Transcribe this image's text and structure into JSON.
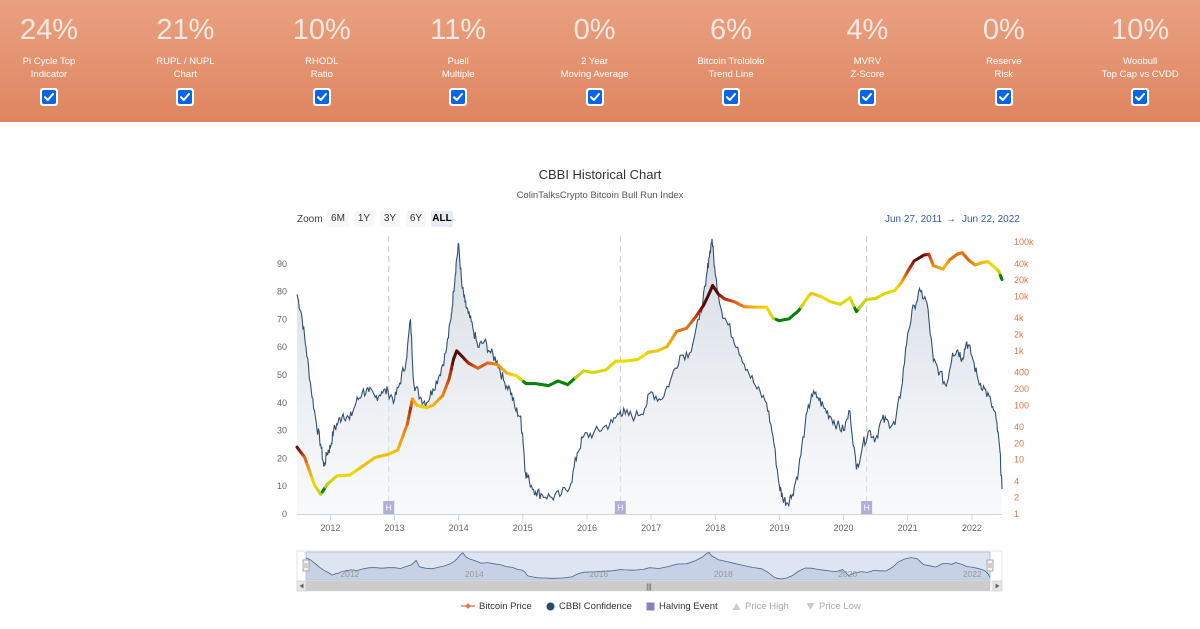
{
  "indicators": [
    {
      "value": "24%",
      "label1": "Pi Cycle Top",
      "label2": "Indicator",
      "checked": true
    },
    {
      "value": "21%",
      "label1": "RUPL / NUPL",
      "label2": "Chart",
      "checked": true
    },
    {
      "value": "10%",
      "label1": "RHODL",
      "label2": "Ratio",
      "checked": true
    },
    {
      "value": "11%",
      "label1": "Puell",
      "label2": "Multiple",
      "checked": true
    },
    {
      "value": "0%",
      "label1": "2 Year",
      "label2": "Moving Average",
      "checked": true
    },
    {
      "value": "6%",
      "label1": "Bitcoin Trolololo",
      "label2": "Trend Line",
      "checked": true
    },
    {
      "value": "4%",
      "label1": "MVRV",
      "label2": "Z-Score",
      "checked": true
    },
    {
      "value": "0%",
      "label1": "Reserve",
      "label2": "Risk",
      "checked": true
    },
    {
      "value": "10%",
      "label1": "Woobull",
      "label2": "Top Cap vs CVDD",
      "checked": true
    }
  ],
  "zoom": {
    "label": "Zoom",
    "buttons": [
      "6M",
      "1Y",
      "3Y",
      "6Y",
      "ALL"
    ],
    "active": "ALL"
  },
  "range": {
    "from": "Jun 27, 2011",
    "arrow": "→",
    "to": "Jun 22, 2022"
  },
  "halving_marker": "H",
  "navigator_scroll_symbol": "|||",
  "legend": [
    {
      "name": "Bitcoin Price",
      "symbol": "line-diamond",
      "color": "#e0734a",
      "visible": true
    },
    {
      "name": "CBBI Confidence",
      "symbol": "circle",
      "color": "#2c4a6b",
      "visible": true
    },
    {
      "name": "Halving Event",
      "symbol": "square",
      "color": "#8a7fc0",
      "visible": true
    },
    {
      "name": "Price High",
      "symbol": "triangle-up",
      "color": "#cccccc",
      "visible": false
    },
    {
      "name": "Price Low",
      "symbol": "triangle-down",
      "color": "#cccccc",
      "visible": false
    }
  ],
  "chart_data": {
    "type": "line",
    "title": "CBBI Historical Chart",
    "subtitle": "ColinTalksCrypto Bitcoin Bull Run Index",
    "x_ticks": [
      "2012",
      "2013",
      "2014",
      "2015",
      "2016",
      "2017",
      "2018",
      "2019",
      "2020",
      "2021",
      "2022"
    ],
    "x_range": [
      2011.48,
      2022.47
    ],
    "y_left": {
      "ticks": [
        0,
        10,
        20,
        30,
        40,
        50,
        60,
        70,
        80,
        90
      ],
      "range": [
        0,
        100
      ]
    },
    "y_right": {
      "scale": "log",
      "ticks": [
        "1",
        "2",
        "4",
        "10",
        "20",
        "40",
        "100",
        "200",
        "400",
        "1k",
        "2k",
        "4k",
        "10k",
        "20k",
        "40k",
        "100k"
      ],
      "range": [
        1,
        130000
      ]
    },
    "halvings": [
      2012.91,
      2016.52,
      2020.36
    ],
    "series": [
      {
        "name": "CBBI Confidence",
        "axis": "left",
        "points": [
          [
            2011.48,
            79
          ],
          [
            2011.55,
            72
          ],
          [
            2011.62,
            60
          ],
          [
            2011.7,
            45
          ],
          [
            2011.78,
            33
          ],
          [
            2011.85,
            25
          ],
          [
            2011.9,
            17
          ],
          [
            2011.95,
            22
          ],
          [
            2012.0,
            24
          ],
          [
            2012.05,
            30
          ],
          [
            2012.12,
            33
          ],
          [
            2012.2,
            36
          ],
          [
            2012.3,
            34
          ],
          [
            2012.4,
            40
          ],
          [
            2012.5,
            44
          ],
          [
            2012.6,
            44
          ],
          [
            2012.7,
            42
          ],
          [
            2012.8,
            44
          ],
          [
            2012.9,
            44
          ],
          [
            2013.0,
            41
          ],
          [
            2013.08,
            47
          ],
          [
            2013.18,
            55
          ],
          [
            2013.25,
            70
          ],
          [
            2013.3,
            47
          ],
          [
            2013.4,
            42
          ],
          [
            2013.5,
            40
          ],
          [
            2013.6,
            45
          ],
          [
            2013.7,
            50
          ],
          [
            2013.8,
            58
          ],
          [
            2013.88,
            70
          ],
          [
            2013.92,
            80
          ],
          [
            2013.96,
            90
          ],
          [
            2014.0,
            97
          ],
          [
            2014.05,
            82
          ],
          [
            2014.1,
            76
          ],
          [
            2014.15,
            72
          ],
          [
            2014.22,
            67
          ],
          [
            2014.3,
            60
          ],
          [
            2014.4,
            62
          ],
          [
            2014.5,
            58
          ],
          [
            2014.6,
            55
          ],
          [
            2014.7,
            48
          ],
          [
            2014.8,
            45
          ],
          [
            2014.88,
            38
          ],
          [
            2014.96,
            35
          ],
          [
            2015.0,
            28
          ],
          [
            2015.04,
            15
          ],
          [
            2015.1,
            12
          ],
          [
            2015.2,
            8
          ],
          [
            2015.3,
            7
          ],
          [
            2015.45,
            6
          ],
          [
            2015.6,
            7
          ],
          [
            2015.75,
            11
          ],
          [
            2015.85,
            22
          ],
          [
            2015.95,
            28
          ],
          [
            2016.1,
            29
          ],
          [
            2016.25,
            31
          ],
          [
            2016.4,
            33
          ],
          [
            2016.52,
            37
          ],
          [
            2016.6,
            36
          ],
          [
            2016.75,
            35
          ],
          [
            2016.9,
            38
          ],
          [
            2017.0,
            44
          ],
          [
            2017.15,
            41
          ],
          [
            2017.3,
            48
          ],
          [
            2017.45,
            57
          ],
          [
            2017.6,
            58
          ],
          [
            2017.75,
            70
          ],
          [
            2017.85,
            82
          ],
          [
            2017.9,
            92
          ],
          [
            2017.95,
            99
          ],
          [
            2018.0,
            86
          ],
          [
            2018.1,
            73
          ],
          [
            2018.2,
            68
          ],
          [
            2018.35,
            60
          ],
          [
            2018.5,
            52
          ],
          [
            2018.65,
            45
          ],
          [
            2018.8,
            40
          ],
          [
            2018.9,
            28
          ],
          [
            2019.0,
            10
          ],
          [
            2019.05,
            6
          ],
          [
            2019.12,
            4
          ],
          [
            2019.2,
            7
          ],
          [
            2019.3,
            16
          ],
          [
            2019.4,
            32
          ],
          [
            2019.5,
            43
          ],
          [
            2019.6,
            42
          ],
          [
            2019.7,
            38
          ],
          [
            2019.8,
            35
          ],
          [
            2019.9,
            32
          ],
          [
            2020.0,
            30
          ],
          [
            2020.1,
            37
          ],
          [
            2020.2,
            16
          ],
          [
            2020.3,
            25
          ],
          [
            2020.4,
            30
          ],
          [
            2020.5,
            27
          ],
          [
            2020.6,
            34
          ],
          [
            2020.7,
            33
          ],
          [
            2020.8,
            32
          ],
          [
            2020.9,
            45
          ],
          [
            2021.0,
            65
          ],
          [
            2021.1,
            75
          ],
          [
            2021.2,
            80
          ],
          [
            2021.3,
            76
          ],
          [
            2021.4,
            55
          ],
          [
            2021.5,
            51
          ],
          [
            2021.6,
            46
          ],
          [
            2021.7,
            58
          ],
          [
            2021.78,
            59
          ],
          [
            2021.85,
            56
          ],
          [
            2021.92,
            62
          ],
          [
            2022.0,
            57
          ],
          [
            2022.1,
            48
          ],
          [
            2022.2,
            45
          ],
          [
            2022.3,
            40
          ],
          [
            2022.38,
            34
          ],
          [
            2022.44,
            22
          ],
          [
            2022.47,
            9
          ]
        ]
      },
      {
        "name": "Bitcoin Price",
        "axis": "right",
        "points": [
          [
            2011.48,
            17
          ],
          [
            2011.6,
            11
          ],
          [
            2011.75,
            3.5
          ],
          [
            2011.85,
            2.3
          ],
          [
            2011.95,
            3.5
          ],
          [
            2012.1,
            5
          ],
          [
            2012.3,
            5.2
          ],
          [
            2012.5,
            7.5
          ],
          [
            2012.7,
            11
          ],
          [
            2012.9,
            12.5
          ],
          [
            2013.05,
            15
          ],
          [
            2013.2,
            45
          ],
          [
            2013.28,
            130
          ],
          [
            2013.35,
            100
          ],
          [
            2013.5,
            90
          ],
          [
            2013.6,
            100
          ],
          [
            2013.75,
            150
          ],
          [
            2013.85,
            300
          ],
          [
            2013.92,
            700
          ],
          [
            2013.97,
            1000
          ],
          [
            2014.05,
            800
          ],
          [
            2014.15,
            600
          ],
          [
            2014.3,
            480
          ],
          [
            2014.45,
            600
          ],
          [
            2014.6,
            570
          ],
          [
            2014.75,
            390
          ],
          [
            2014.9,
            350
          ],
          [
            2015.05,
            250
          ],
          [
            2015.2,
            250
          ],
          [
            2015.4,
            230
          ],
          [
            2015.55,
            280
          ],
          [
            2015.7,
            240
          ],
          [
            2015.82,
            320
          ],
          [
            2015.95,
            430
          ],
          [
            2016.1,
            400
          ],
          [
            2016.3,
            450
          ],
          [
            2016.45,
            650
          ],
          [
            2016.6,
            650
          ],
          [
            2016.8,
            700
          ],
          [
            2016.96,
            950
          ],
          [
            2017.1,
            1000
          ],
          [
            2017.25,
            1200
          ],
          [
            2017.4,
            2300
          ],
          [
            2017.55,
            2600
          ],
          [
            2017.7,
            4300
          ],
          [
            2017.82,
            7000
          ],
          [
            2017.9,
            11000
          ],
          [
            2017.96,
            16000
          ],
          [
            2018.05,
            11000
          ],
          [
            2018.15,
            9000
          ],
          [
            2018.3,
            8000
          ],
          [
            2018.45,
            6500
          ],
          [
            2018.6,
            6400
          ],
          [
            2018.8,
            6400
          ],
          [
            2018.9,
            4000
          ],
          [
            2019.0,
            3600
          ],
          [
            2019.15,
            3900
          ],
          [
            2019.3,
            5500
          ],
          [
            2019.45,
            10000
          ],
          [
            2019.5,
            11500
          ],
          [
            2019.65,
            10000
          ],
          [
            2019.8,
            8000
          ],
          [
            2019.95,
            7200
          ],
          [
            2020.1,
            9500
          ],
          [
            2020.2,
            5300
          ],
          [
            2020.35,
            8800
          ],
          [
            2020.5,
            9200
          ],
          [
            2020.65,
            11500
          ],
          [
            2020.8,
            13000
          ],
          [
            2020.9,
            18000
          ],
          [
            2021.0,
            29000
          ],
          [
            2021.1,
            45000
          ],
          [
            2021.25,
            58000
          ],
          [
            2021.33,
            60000
          ],
          [
            2021.4,
            37000
          ],
          [
            2021.55,
            32000
          ],
          [
            2021.65,
            47000
          ],
          [
            2021.78,
            61000
          ],
          [
            2021.85,
            64000
          ],
          [
            2021.95,
            47000
          ],
          [
            2022.05,
            38000
          ],
          [
            2022.15,
            42000
          ],
          [
            2022.25,
            44000
          ],
          [
            2022.35,
            35000
          ],
          [
            2022.42,
            29000
          ],
          [
            2022.47,
            20500
          ]
        ]
      }
    ],
    "navigator_ticks": [
      "2012",
      "2014",
      "2016",
      "2018",
      "2020",
      "2022"
    ]
  }
}
